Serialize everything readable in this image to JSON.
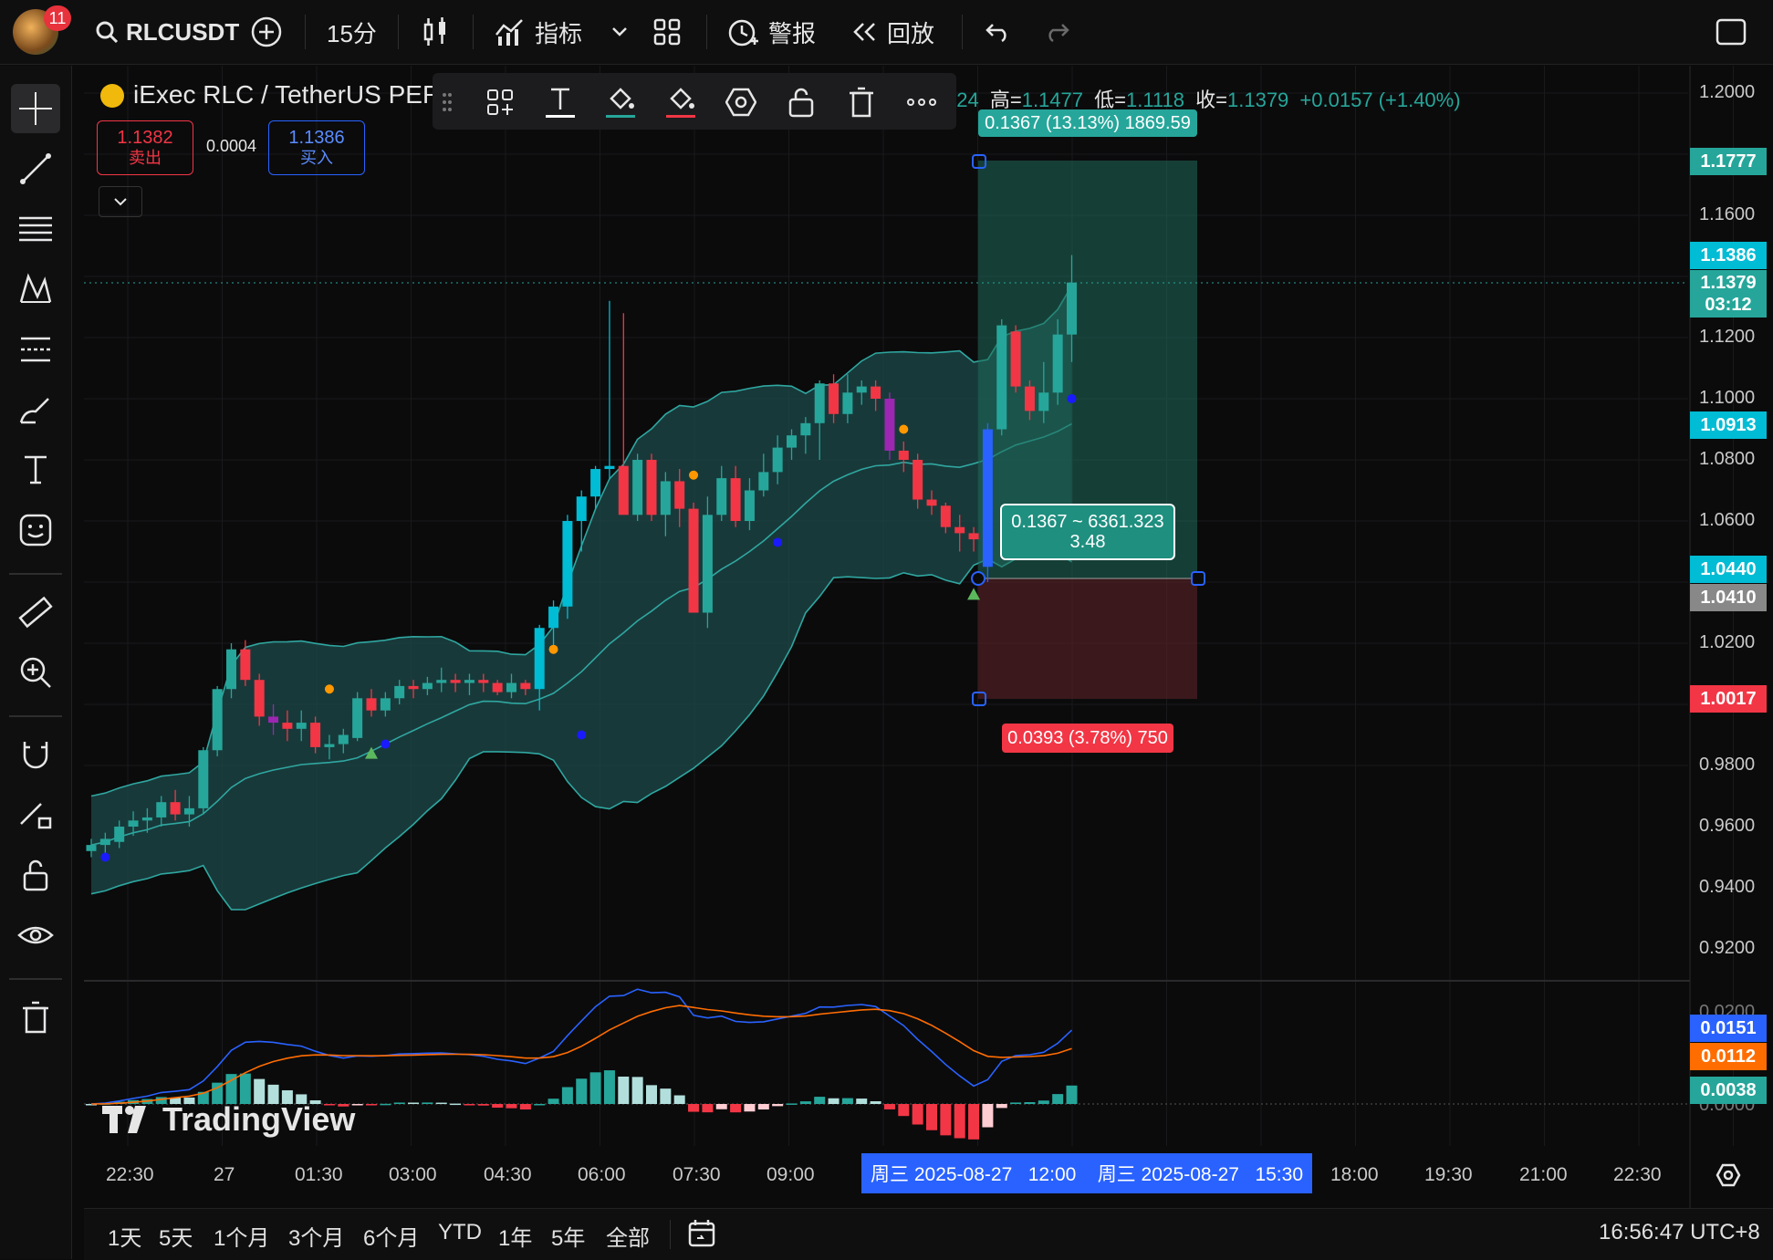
{
  "topbar": {
    "notifications": "11",
    "symbol": "RLCUSDT",
    "interval": "15分",
    "indicators_label": "指标",
    "alerts_label": "警报",
    "replay_label": "回放"
  },
  "legend": {
    "symbol_title": "iExec RLC / TetherUS PERP",
    "open_tail": "224",
    "high_label": "高=",
    "high_value": "1.1477",
    "low_label": "低=",
    "low_value": "1.1118",
    "close_label": "收=",
    "close_value": "1.1379",
    "change": "+0.0157 (+1.40%)"
  },
  "trade": {
    "sell_price": "1.1382",
    "sell_label": "卖出",
    "spread": "0.0004",
    "buy_price": "1.1386",
    "buy_label": "买入"
  },
  "position_tool": {
    "target_label": "0.1367 (13.13%) 1869.59",
    "center_line1": "0.1367 ~ 6361.323",
    "center_line2": "3.48",
    "stop_label": "0.0393 (3.78%) 750"
  },
  "price_axis": {
    "ticks": [
      "1.2000",
      "1.1600",
      "1.1200",
      "1.1000",
      "1.0800",
      "1.0600",
      "1.0200",
      "0.9800",
      "0.9600",
      "0.9400",
      "0.9200"
    ],
    "labels": {
      "target": "1.1777",
      "ask": "1.1386",
      "last": "1.1379",
      "countdown": "03:12",
      "bb_lower": "1.0913",
      "entry_a": "1.0440",
      "entry_b": "1.0410",
      "stop": "1.0017"
    },
    "macd_ticks": [
      "0.0200",
      "0.0000"
    ],
    "macd_labels": {
      "macd": "0.0151",
      "signal": "0.0112",
      "hist": "0.0038"
    }
  },
  "time_axis": {
    "ticks": [
      "22:30",
      "27",
      "01:30",
      "03:00",
      "04:30",
      "06:00",
      "07:30",
      "09:00",
      "18:00",
      "19:30",
      "21:00",
      "22:30"
    ],
    "range_start": "周三 2025-08-27   12:00",
    "range_end": "周三 2025-08-27   15:30"
  },
  "watermark": "TradingView",
  "bottombar": {
    "ranges": [
      "1天",
      "5天",
      "1个月",
      "3个月",
      "6个月",
      "YTD",
      "1年",
      "5年",
      "全部"
    ],
    "clock": "16:56:47 UTC+8"
  },
  "colors": {
    "up": "#26a69a",
    "down": "#f23645",
    "cyan": "#00bcd4",
    "band": "#1f5a5a",
    "macd": "#2962ff",
    "signal": "#ff6d00"
  },
  "chart_data": {
    "type": "candlestick",
    "symbol": "RLCUSDT",
    "interval": "15分",
    "candles_ohlc": [
      [
        0.952,
        0.956,
        0.95,
        0.954
      ],
      [
        0.954,
        0.958,
        0.951,
        0.956
      ],
      [
        0.955,
        0.962,
        0.953,
        0.96
      ],
      [
        0.96,
        0.965,
        0.957,
        0.962
      ],
      [
        0.962,
        0.966,
        0.958,
        0.963
      ],
      [
        0.963,
        0.97,
        0.96,
        0.968
      ],
      [
        0.968,
        0.972,
        0.962,
        0.964
      ],
      [
        0.964,
        0.97,
        0.96,
        0.966
      ],
      [
        0.966,
        0.986,
        0.964,
        0.985
      ],
      [
        0.985,
        1.006,
        0.983,
        1.005
      ],
      [
        1.005,
        1.02,
        1.002,
        1.018
      ],
      [
        1.018,
        1.021,
        1.006,
        1.008
      ],
      [
        1.008,
        1.01,
        0.993,
        0.996
      ],
      [
        0.996,
        1.0,
        0.99,
        0.994
      ],
      [
        0.994,
        0.998,
        0.988,
        0.992
      ],
      [
        0.992,
        0.998,
        0.988,
        0.994
      ],
      [
        0.994,
        0.996,
        0.984,
        0.986
      ],
      [
        0.986,
        0.99,
        0.982,
        0.987
      ],
      [
        0.987,
        0.992,
        0.984,
        0.99
      ],
      [
        0.989,
        1.004,
        0.988,
        1.002
      ],
      [
        1.002,
        1.005,
        0.996,
        0.998
      ],
      [
        0.998,
        1.004,
        0.996,
        1.002
      ],
      [
        1.002,
        1.008,
        1.0,
        1.006
      ],
      [
        1.006,
        1.008,
        1.002,
        1.005
      ],
      [
        1.005,
        1.009,
        1.003,
        1.007
      ],
      [
        1.007,
        1.012,
        1.004,
        1.008
      ],
      [
        1.008,
        1.01,
        1.004,
        1.007
      ],
      [
        1.007,
        1.01,
        1.003,
        1.008
      ],
      [
        1.008,
        1.01,
        1.004,
        1.007
      ],
      [
        1.007,
        1.008,
        1.003,
        1.004
      ],
      [
        1.004,
        1.01,
        1.002,
        1.007
      ],
      [
        1.007,
        1.008,
        1.003,
        1.005
      ],
      [
        1.005,
        1.026,
        0.998,
        1.025
      ],
      [
        1.025,
        1.034,
        1.018,
        1.032
      ],
      [
        1.032,
        1.062,
        1.028,
        1.06
      ],
      [
        1.06,
        1.07,
        1.05,
        1.068
      ],
      [
        1.068,
        1.078,
        1.064,
        1.077
      ],
      [
        1.077,
        1.132,
        1.074,
        1.078
      ],
      [
        1.078,
        1.128,
        1.064,
        1.062
      ],
      [
        1.062,
        1.082,
        1.06,
        1.08
      ],
      [
        1.08,
        1.082,
        1.06,
        1.062
      ],
      [
        1.062,
        1.076,
        1.055,
        1.073
      ],
      [
        1.073,
        1.077,
        1.058,
        1.064
      ],
      [
        1.064,
        1.066,
        1.03,
        1.03
      ],
      [
        1.03,
        1.068,
        1.025,
        1.062
      ],
      [
        1.062,
        1.078,
        1.06,
        1.074
      ],
      [
        1.074,
        1.078,
        1.058,
        1.06
      ],
      [
        1.06,
        1.074,
        1.057,
        1.07
      ],
      [
        1.07,
        1.082,
        1.068,
        1.076
      ],
      [
        1.076,
        1.088,
        1.072,
        1.084
      ],
      [
        1.084,
        1.09,
        1.08,
        1.088
      ],
      [
        1.088,
        1.094,
        1.082,
        1.092
      ],
      [
        1.092,
        1.106,
        1.08,
        1.105
      ],
      [
        1.105,
        1.108,
        1.092,
        1.095
      ],
      [
        1.095,
        1.108,
        1.092,
        1.102
      ],
      [
        1.102,
        1.106,
        1.098,
        1.104
      ],
      [
        1.104,
        1.106,
        1.096,
        1.1
      ],
      [
        1.1,
        1.102,
        1.08,
        1.083
      ],
      [
        1.083,
        1.086,
        1.076,
        1.08
      ],
      [
        1.08,
        1.082,
        1.064,
        1.067
      ],
      [
        1.067,
        1.07,
        1.062,
        1.065
      ],
      [
        1.065,
        1.066,
        1.056,
        1.058
      ],
      [
        1.058,
        1.062,
        1.05,
        1.056
      ],
      [
        1.056,
        1.058,
        1.05,
        1.054
      ],
      [
        1.045,
        1.092,
        1.04,
        1.09
      ],
      [
        1.09,
        1.126,
        1.088,
        1.124
      ],
      [
        1.122,
        1.124,
        1.102,
        1.104
      ],
      [
        1.104,
        1.106,
        1.093,
        1.096
      ],
      [
        1.096,
        1.112,
        1.092,
        1.102
      ],
      [
        1.102,
        1.126,
        1.098,
        1.121
      ],
      [
        1.121,
        1.147,
        1.112,
        1.138
      ]
    ],
    "bollinger_upper_ends": [
      0.958,
      1.122
    ],
    "bollinger_lower_ends": [
      0.928,
      1.056
    ],
    "position_tool": {
      "entry": 1.041,
      "target": 1.1777,
      "stop": 1.0017
    },
    "macd": {
      "macd_last": 0.0151,
      "signal_last": 0.0112,
      "hist_last": 0.0038
    }
  }
}
